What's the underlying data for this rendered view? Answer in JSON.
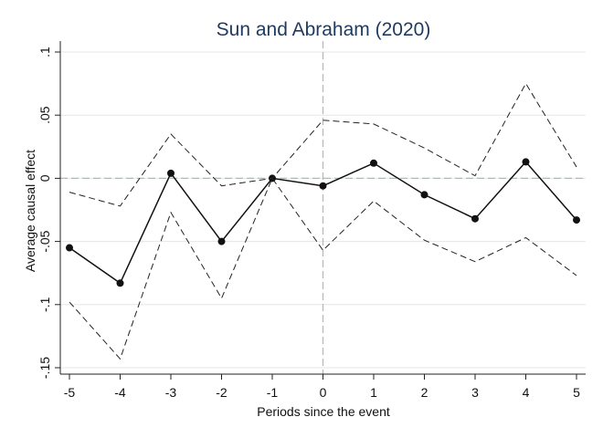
{
  "chart_data": {
    "type": "line",
    "title": "Sun and Abraham (2020)",
    "xlabel": "Periods since the event",
    "ylabel": "Average causal effect",
    "x": [
      -5,
      -4,
      -3,
      -2,
      -1,
      0,
      1,
      2,
      3,
      4,
      5
    ],
    "xticks": [
      "-5",
      "-4",
      "-3",
      "-2",
      "-1",
      "0",
      "1",
      "2",
      "3",
      "4",
      "5"
    ],
    "yticks": [
      {
        "value": 0.1,
        "label": ".1"
      },
      {
        "value": 0.05,
        "label": ".05"
      },
      {
        "value": 0,
        "label": "0"
      },
      {
        "value": -0.05,
        "label": "-.05"
      },
      {
        "value": -0.1,
        "label": "-.1"
      },
      {
        "value": -0.15,
        "label": "-.15"
      }
    ],
    "xlim": [
      -5,
      5
    ],
    "ylim": [
      -0.15,
      0.1
    ],
    "grid": true,
    "reference_lines": {
      "y": 0,
      "x": 0
    },
    "series": [
      {
        "role": "estimate",
        "style": "solid-with-markers",
        "values": [
          -0.055,
          -0.083,
          0.004,
          -0.05,
          0.0,
          -0.006,
          0.012,
          -0.013,
          -0.032,
          0.013,
          -0.033
        ]
      },
      {
        "role": "upper-ci",
        "style": "dashed",
        "values": [
          -0.011,
          -0.022,
          0.035,
          -0.006,
          0.0,
          0.046,
          0.043,
          0.024,
          0.002,
          0.075,
          0.009
        ]
      },
      {
        "role": "lower-ci",
        "style": "dashed",
        "values": [
          -0.098,
          -0.143,
          -0.027,
          -0.095,
          0.0,
          -0.057,
          -0.018,
          -0.049,
          -0.066,
          -0.047,
          -0.077
        ]
      }
    ],
    "colors": {
      "estimate": "#111111",
      "ci": "#222222",
      "zero_line": "#9fc2bd",
      "event_line": "#b5b5b5",
      "grid": "#e6e6e6",
      "title": "#1f3a5f"
    }
  }
}
